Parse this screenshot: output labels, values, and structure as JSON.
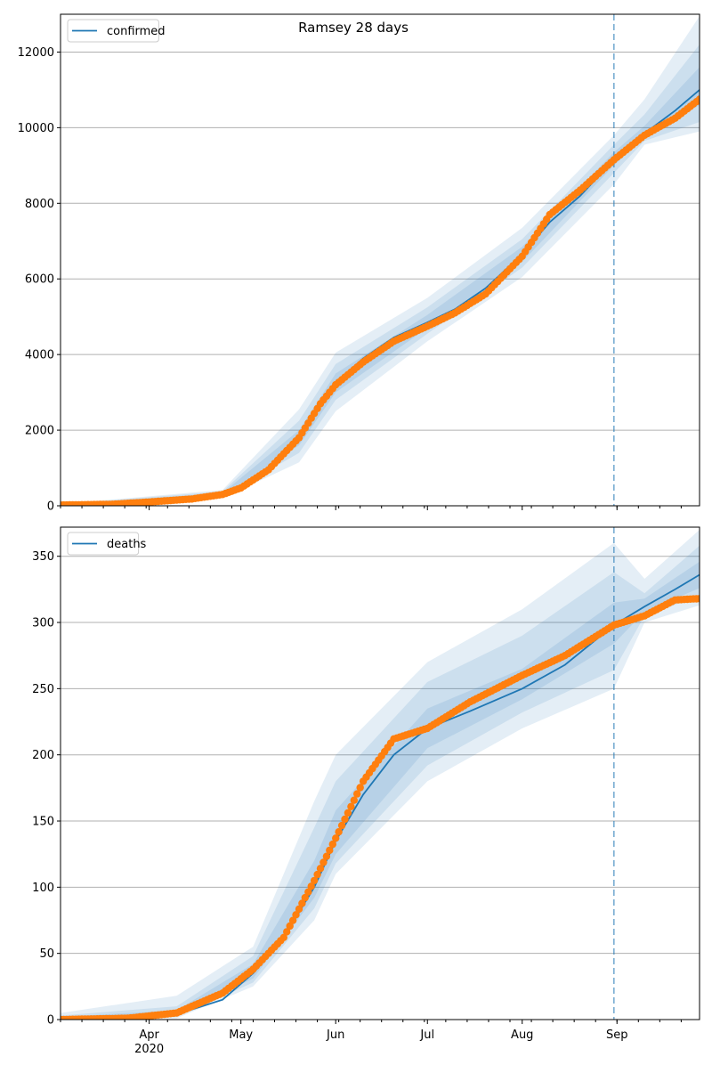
{
  "figure": {
    "title": "Ramsey 28 days",
    "colors": {
      "model": "#1f77b4",
      "observed": "#ff7f0e",
      "band": "#1f77b4",
      "grid": "#b0b0b0",
      "cutoff": "#1f77b4"
    }
  },
  "chart_data": [
    {
      "type": "line",
      "name": "confirmed-panel",
      "legend": [
        "confirmed"
      ],
      "legend_position": "upper-left",
      "grid": "horizontal",
      "xlim": [
        "2020-03-03",
        "2020-09-28"
      ],
      "ylim": [
        0,
        13000
      ],
      "yticks": [
        0,
        2000,
        4000,
        6000,
        8000,
        10000,
        12000
      ],
      "xticks": [
        {
          "date": "2020-04-01",
          "label": "Apr",
          "sublabel": "2020"
        },
        {
          "date": "2020-05-01",
          "label": "May"
        },
        {
          "date": "2020-06-01",
          "label": "Jun"
        },
        {
          "date": "2020-07-01",
          "label": "Jul"
        },
        {
          "date": "2020-08-01",
          "label": "Aug"
        },
        {
          "date": "2020-09-01",
          "label": "Sep"
        }
      ],
      "cutoff_date": "2020-08-31",
      "series": [
        {
          "name": "confirmed",
          "role": "model",
          "x": [
            "2020-03-03",
            "2020-03-20",
            "2020-04-01",
            "2020-04-15",
            "2020-04-25",
            "2020-05-01",
            "2020-05-10",
            "2020-05-20",
            "2020-05-27",
            "2020-06-01",
            "2020-06-10",
            "2020-06-20",
            "2020-07-01",
            "2020-07-10",
            "2020-07-20",
            "2020-08-01",
            "2020-08-10",
            "2020-08-20",
            "2020-08-31",
            "2020-09-10",
            "2020-09-20",
            "2020-09-28"
          ],
          "y": [
            20,
            40,
            100,
            180,
            300,
            460,
            900,
            1800,
            2700,
            3250,
            3900,
            4450,
            4850,
            5200,
            5750,
            6650,
            7500,
            8200,
            9150,
            9850,
            10450,
            11000
          ]
        },
        {
          "name": "observed",
          "role": "points",
          "x": [
            "2020-03-03",
            "2020-03-20",
            "2020-04-01",
            "2020-04-15",
            "2020-04-25",
            "2020-05-01",
            "2020-05-10",
            "2020-05-20",
            "2020-05-27",
            "2020-06-01",
            "2020-06-10",
            "2020-06-20",
            "2020-07-01",
            "2020-07-10",
            "2020-07-20",
            "2020-08-01",
            "2020-08-10",
            "2020-08-20",
            "2020-08-31",
            "2020-09-10",
            "2020-09-20",
            "2020-09-28"
          ],
          "y": [
            20,
            40,
            100,
            180,
            300,
            470,
            950,
            1800,
            2700,
            3200,
            3800,
            4350,
            4750,
            5100,
            5600,
            6600,
            7700,
            8350,
            9150,
            9800,
            10250,
            10750
          ]
        }
      ],
      "bands": [
        {
          "x": [
            "2020-03-03",
            "2020-04-25",
            "2020-05-20",
            "2020-06-01",
            "2020-07-01",
            "2020-08-01",
            "2020-08-31",
            "2020-09-10",
            "2020-09-28"
          ],
          "lo": [
            0,
            200,
            1150,
            2500,
            4350,
            6050,
            8500,
            9550,
            9900
          ],
          "hi": [
            50,
            420,
            2550,
            4050,
            5500,
            7350,
            9800,
            10750,
            12950
          ]
        },
        {
          "x": [
            "2020-03-03",
            "2020-04-25",
            "2020-05-20",
            "2020-06-01",
            "2020-07-01",
            "2020-08-01",
            "2020-08-31",
            "2020-09-10",
            "2020-09-28"
          ],
          "lo": [
            5,
            240,
            1400,
            2800,
            4550,
            6300,
            8800,
            9650,
            10150
          ],
          "hi": [
            40,
            380,
            2250,
            3750,
            5250,
            7050,
            9550,
            10350,
            12200
          ]
        },
        {
          "x": [
            "2020-03-03",
            "2020-04-25",
            "2020-05-20",
            "2020-06-01",
            "2020-07-01",
            "2020-08-01",
            "2020-08-31",
            "2020-09-10",
            "2020-09-28"
          ],
          "lo": [
            10,
            265,
            1600,
            3000,
            4700,
            6450,
            9000,
            9750,
            10600
          ],
          "hi": [
            30,
            340,
            2000,
            3500,
            5050,
            6850,
            9350,
            10050,
            11600
          ]
        }
      ]
    },
    {
      "type": "line",
      "name": "deaths-panel",
      "legend": [
        "deaths"
      ],
      "legend_position": "upper-left",
      "grid": "horizontal",
      "xlim": [
        "2020-03-03",
        "2020-09-28"
      ],
      "ylim": [
        0,
        372
      ],
      "yticks": [
        0,
        50,
        100,
        150,
        200,
        250,
        300,
        350
      ],
      "xticks": [
        {
          "date": "2020-04-01",
          "label": "Apr",
          "sublabel": "2020"
        },
        {
          "date": "2020-05-01",
          "label": "May"
        },
        {
          "date": "2020-06-01",
          "label": "Jun"
        },
        {
          "date": "2020-07-01",
          "label": "Jul"
        },
        {
          "date": "2020-08-01",
          "label": "Aug"
        },
        {
          "date": "2020-09-01",
          "label": "Sep"
        }
      ],
      "cutoff_date": "2020-08-31",
      "series": [
        {
          "name": "deaths",
          "role": "model",
          "x": [
            "2020-03-03",
            "2020-03-25",
            "2020-04-10",
            "2020-04-25",
            "2020-05-05",
            "2020-05-15",
            "2020-05-25",
            "2020-06-01",
            "2020-06-10",
            "2020-06-20",
            "2020-07-01",
            "2020-07-15",
            "2020-08-01",
            "2020-08-15",
            "2020-08-31",
            "2020-09-10",
            "2020-09-20",
            "2020-09-28"
          ],
          "y": [
            0,
            1,
            4,
            15,
            35,
            62,
            100,
            135,
            170,
            200,
            220,
            233,
            250,
            268,
            298,
            312,
            325,
            336
          ]
        },
        {
          "name": "observed",
          "role": "points",
          "x": [
            "2020-03-03",
            "2020-03-25",
            "2020-04-10",
            "2020-04-25",
            "2020-05-05",
            "2020-05-15",
            "2020-05-25",
            "2020-06-01",
            "2020-06-10",
            "2020-06-20",
            "2020-07-01",
            "2020-07-15",
            "2020-08-01",
            "2020-08-15",
            "2020-08-31",
            "2020-09-10",
            "2020-09-20",
            "2020-09-28"
          ],
          "y": [
            0,
            1,
            5,
            20,
            38,
            62,
            105,
            137,
            180,
            212,
            220,
            240,
            260,
            275,
            298,
            305,
            317,
            318
          ]
        }
      ],
      "bands": [
        {
          "x": [
            "2020-03-03",
            "2020-04-10",
            "2020-05-05",
            "2020-05-25",
            "2020-06-01",
            "2020-07-01",
            "2020-08-01",
            "2020-08-31",
            "2020-09-10",
            "2020-09-28"
          ],
          "lo": [
            0,
            1,
            25,
            75,
            110,
            180,
            220,
            250,
            300,
            313
          ],
          "hi": [
            5,
            18,
            55,
            165,
            200,
            270,
            310,
            360,
            333,
            370
          ]
        },
        {
          "x": [
            "2020-03-03",
            "2020-04-10",
            "2020-05-05",
            "2020-05-25",
            "2020-06-01",
            "2020-07-01",
            "2020-08-01",
            "2020-08-31",
            "2020-09-10",
            "2020-09-28"
          ],
          "lo": [
            0,
            2,
            28,
            84,
            118,
            192,
            232,
            264,
            305,
            320
          ],
          "hi": [
            3,
            10,
            48,
            145,
            180,
            255,
            290,
            338,
            322,
            358
          ]
        },
        {
          "x": [
            "2020-03-03",
            "2020-04-10",
            "2020-05-05",
            "2020-05-25",
            "2020-06-01",
            "2020-07-01",
            "2020-08-01",
            "2020-08-31",
            "2020-09-10",
            "2020-09-28"
          ],
          "lo": [
            0,
            3,
            31,
            92,
            125,
            205,
            242,
            284,
            308,
            326
          ],
          "hi": [
            2,
            7,
            42,
            120,
            158,
            235,
            265,
            315,
            318,
            346
          ]
        }
      ]
    }
  ]
}
